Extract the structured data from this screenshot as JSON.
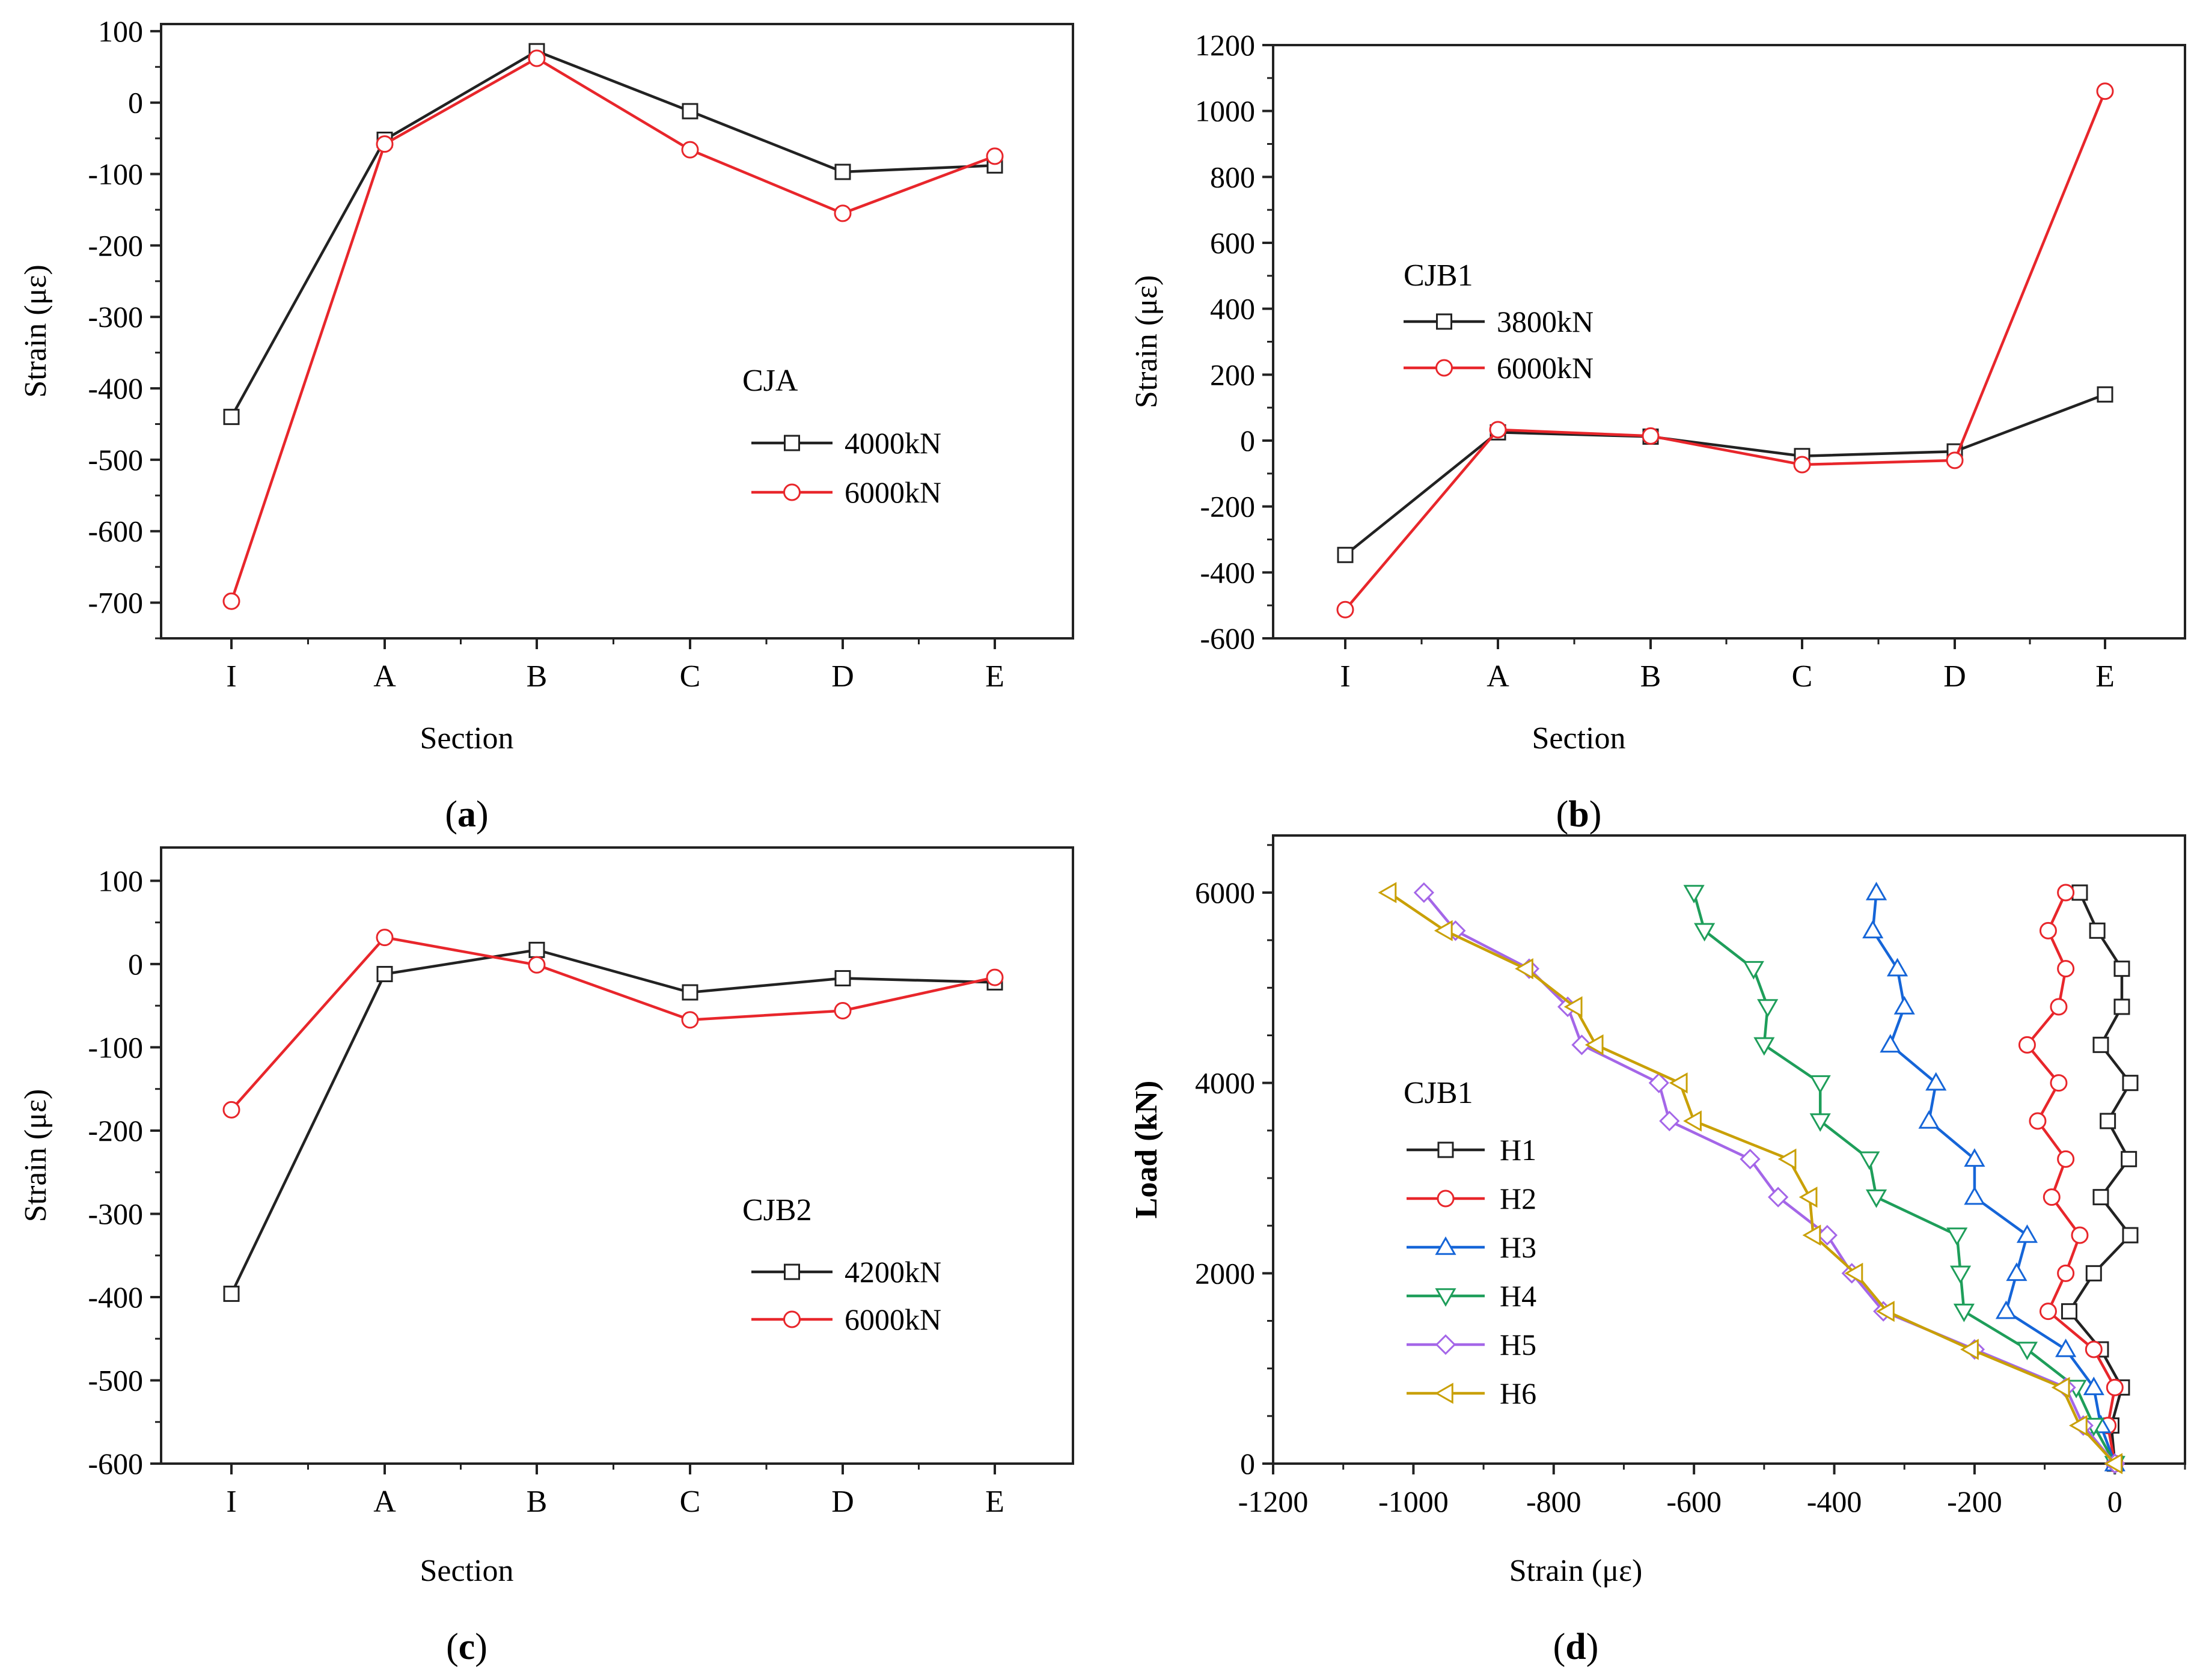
{
  "colors": {
    "black": "#222222",
    "red": "#e8262b",
    "blue": "#1565d8",
    "green": "#1e9e5a",
    "purple": "#a466e8",
    "gold": "#c9a006"
  },
  "chart_data": [
    {
      "id": "a",
      "type": "line",
      "panel_label": "a",
      "xlabel": "Section",
      "ylabel": "Strain (με)",
      "categories": [
        "I",
        "A",
        "B",
        "C",
        "D",
        "E"
      ],
      "ylim": [
        -750,
        110
      ],
      "yticks": [
        100,
        0,
        -100,
        -200,
        -300,
        -400,
        -500,
        -600,
        -700
      ],
      "ytick_labels": [
        "100",
        "0",
        "-100",
        "-200",
        "-300",
        "-400",
        "-500",
        "-600",
        "-700"
      ],
      "legend_title": "CJA",
      "series": [
        {
          "name": "4000kN",
          "color": "black",
          "marker": "square",
          "values": [
            -440,
            -52,
            72,
            -12,
            -97,
            -88
          ]
        },
        {
          "name": "6000kN",
          "color": "red",
          "marker": "circle",
          "values": [
            -698,
            -58,
            62,
            -66,
            -155,
            -75
          ]
        }
      ]
    },
    {
      "id": "b",
      "type": "line",
      "panel_label": "b",
      "xlabel": "Section",
      "ylabel": "Strain (με)",
      "categories": [
        "I",
        "A",
        "B",
        "C",
        "D",
        "E"
      ],
      "ylim": [
        -600,
        1200
      ],
      "yticks": [
        1200,
        1000,
        800,
        600,
        400,
        200,
        0,
        -200,
        -400,
        -600
      ],
      "ytick_labels": [
        "1200",
        "1000",
        "800",
        "600",
        "400",
        "200",
        "0",
        "-200",
        "-400",
        "-600"
      ],
      "legend_title": "CJB1",
      "series": [
        {
          "name": "3800kN",
          "color": "black",
          "marker": "square",
          "values": [
            -347,
            25,
            12,
            -47,
            -33,
            140
          ]
        },
        {
          "name": "6000kN",
          "color": "red",
          "marker": "circle",
          "values": [
            -513,
            33,
            14,
            -73,
            -60,
            1060
          ]
        }
      ]
    },
    {
      "id": "c",
      "type": "line",
      "panel_label": "c",
      "xlabel": "Section",
      "ylabel": "Strain (με)",
      "categories": [
        "I",
        "A",
        "B",
        "C",
        "D",
        "E"
      ],
      "ylim": [
        -600,
        140
      ],
      "yticks": [
        100,
        0,
        -100,
        -200,
        -300,
        -400,
        -500,
        -600
      ],
      "ytick_labels": [
        "100",
        "0",
        "-100",
        "-200",
        "-300",
        "-400",
        "-500",
        "-600"
      ],
      "legend_title": "CJB2",
      "series": [
        {
          "name": "4200kN",
          "color": "black",
          "marker": "square",
          "values": [
            -396,
            -12,
            17,
            -34,
            -17,
            -22
          ]
        },
        {
          "name": "6000kN",
          "color": "red",
          "marker": "circle",
          "values": [
            -175,
            32,
            -1,
            -67,
            -56,
            -16
          ]
        }
      ]
    },
    {
      "id": "d",
      "type": "line",
      "panel_label": "d",
      "xlabel": "Strain (με)",
      "ylabel": "Load (kN)",
      "xlim": [
        -1200,
        100
      ],
      "ylim": [
        0,
        6600
      ],
      "xticks": [
        -1200,
        -1000,
        -800,
        -600,
        -400,
        -200,
        0
      ],
      "xtick_labels": [
        "-1200",
        "-1000",
        "-800",
        "-600",
        "-400",
        "-200",
        "0"
      ],
      "yticks": [
        0,
        2000,
        4000,
        6000
      ],
      "ytick_labels": [
        "0",
        "2000",
        "4000",
        "6000"
      ],
      "legend_title": "CJB1",
      "loads": [
        0,
        400,
        800,
        1200,
        1600,
        2000,
        2400,
        2800,
        3200,
        3600,
        4000,
        4400,
        4800,
        5200,
        5600,
        6000
      ],
      "series": [
        {
          "name": "H1",
          "color": "black",
          "marker": "square",
          "x": [
            0,
            -5,
            10,
            -20,
            -65,
            -30,
            22,
            -20,
            20,
            -10,
            22,
            -20,
            10,
            10,
            -25,
            -50
          ]
        },
        {
          "name": "H2",
          "color": "red",
          "marker": "circle",
          "x": [
            0,
            -10,
            0,
            -30,
            -95,
            -70,
            -50,
            -90,
            -70,
            -110,
            -80,
            -125,
            -80,
            -70,
            -95,
            -70
          ]
        },
        {
          "name": "H3",
          "color": "blue",
          "marker": "triangle-up",
          "x": [
            0,
            -20,
            -30,
            -70,
            -155,
            -140,
            -125,
            -200,
            -200,
            -265,
            -255,
            -320,
            -300,
            -310,
            -345,
            -340
          ]
        },
        {
          "name": "H4",
          "color": "green",
          "marker": "triangle-down",
          "x": [
            0,
            -30,
            -55,
            -125,
            -215,
            -220,
            -225,
            -340,
            -350,
            -420,
            -420,
            -500,
            -495,
            -515,
            -585,
            -600
          ]
        },
        {
          "name": "H5",
          "color": "purple",
          "marker": "diamond",
          "x": [
            0,
            -45,
            -70,
            -200,
            -330,
            -375,
            -410,
            -480,
            -520,
            -635,
            -650,
            -760,
            -780,
            -835,
            -940,
            -985
          ]
        },
        {
          "name": "H6",
          "color": "gold",
          "marker": "triangle-left",
          "x": [
            0,
            -50,
            -75,
            -205,
            -325,
            -370,
            -430,
            -435,
            -465,
            -600,
            -620,
            -740,
            -770,
            -840,
            -955,
            -1035
          ]
        }
      ]
    }
  ]
}
